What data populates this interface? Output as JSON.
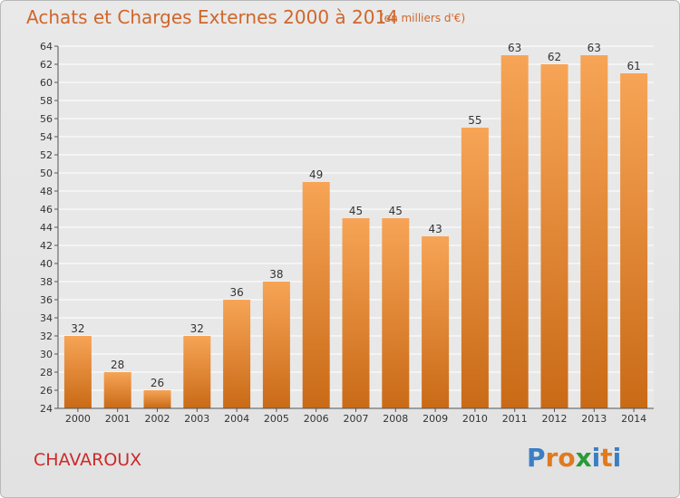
{
  "title": "Achats et Charges Externes 2000 à 2014",
  "subtitle": "(en milliers d'€)",
  "place": "CHAVAROUX",
  "logo": {
    "text": "Proxiti",
    "letters": [
      {
        "ch": "P",
        "color": "#3a7fc4"
      },
      {
        "ch": "r",
        "color": "#e07a1f"
      },
      {
        "ch": "o",
        "color": "#e07a1f"
      },
      {
        "ch": "x",
        "color": "#2a9a3a"
      },
      {
        "ch": "i",
        "color": "#3a7fc4"
      },
      {
        "ch": "t",
        "color": "#e07a1f"
      },
      {
        "ch": "i",
        "color": "#3a7fc4"
      }
    ]
  },
  "colors": {
    "bar_top": "#f7a456",
    "bar_bottom": "#c96a16",
    "axis": "#555555",
    "grid": "#ffffff",
    "plot_bg": "#e8e8e8"
  },
  "chart_data": {
    "type": "bar",
    "title": "Achats et Charges Externes 2000 à 2014",
    "subtitle": "(en milliers d'€)",
    "categories": [
      "2000",
      "2001",
      "2002",
      "2003",
      "2004",
      "2005",
      "2006",
      "2007",
      "2008",
      "2009",
      "2010",
      "2011",
      "2012",
      "2013",
      "2014"
    ],
    "values": [
      32,
      28,
      26,
      32,
      36,
      38,
      49,
      45,
      45,
      43,
      55,
      63,
      62,
      63,
      61
    ],
    "ylim": [
      24,
      64
    ],
    "yticks": [
      24,
      26,
      28,
      30,
      32,
      34,
      36,
      38,
      40,
      42,
      44,
      46,
      48,
      50,
      52,
      54,
      56,
      58,
      60,
      62,
      64
    ],
    "grid": true,
    "xlabel": "",
    "ylabel": ""
  }
}
